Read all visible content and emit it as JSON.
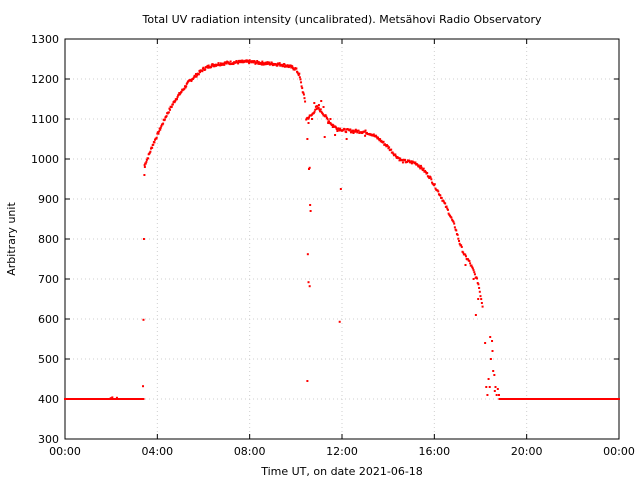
{
  "chart_data": {
    "type": "scatter",
    "title": "Total UV radiation intensity (uncalibrated). Metsähovi Radio Observatory",
    "xlabel": "Time UT, on date 2021-06-18",
    "ylabel": "Arbitrary unit",
    "x_unit": "hours UT",
    "xlim": [
      0,
      24
    ],
    "ylim": [
      300,
      1300
    ],
    "x_ticks": [
      0,
      4,
      8,
      12,
      16,
      20,
      24
    ],
    "x_tick_labels": [
      "00:00",
      "04:00",
      "08:00",
      "12:00",
      "16:00",
      "20:00",
      "00:00"
    ],
    "y_ticks": [
      300,
      400,
      500,
      600,
      700,
      800,
      900,
      1000,
      1100,
      1200,
      1300
    ],
    "y_tick_labels": [
      "300",
      "400",
      "500",
      "600",
      "700",
      "800",
      "900",
      "1000",
      "1100",
      "1200",
      "1300"
    ],
    "grid": true,
    "series": [
      {
        "color": "#ff0000",
        "segments": [
          {
            "x_start": 0.0,
            "x_end": 3.42,
            "step": 0.05,
            "profile": [
              [
                0.0,
                400
              ],
              [
                3.42,
                400
              ]
            ]
          },
          {
            "x_start": 3.45,
            "x_end": 10.42,
            "step": 0.025,
            "profile": [
              [
                3.45,
                985
              ],
              [
                3.6,
                1005
              ],
              [
                3.8,
                1035
              ],
              [
                4.0,
                1060
              ],
              [
                4.2,
                1085
              ],
              [
                4.4,
                1110
              ],
              [
                4.6,
                1130
              ],
              [
                4.8,
                1150
              ],
              [
                5.0,
                1165
              ],
              [
                5.2,
                1180
              ],
              [
                5.4,
                1195
              ],
              [
                5.6,
                1205
              ],
              [
                5.8,
                1215
              ],
              [
                6.0,
                1225
              ],
              [
                6.3,
                1233
              ],
              [
                6.6,
                1237
              ],
              [
                7.0,
                1240
              ],
              [
                7.5,
                1242
              ],
              [
                8.0,
                1243
              ],
              [
                8.5,
                1240
              ],
              [
                9.0,
                1238
              ],
              [
                9.4,
                1236
              ],
              [
                9.7,
                1232
              ],
              [
                10.0,
                1225
              ],
              [
                10.15,
                1210
              ],
              [
                10.3,
                1170
              ],
              [
                10.42,
                1140
              ]
            ]
          },
          {
            "x_start": 10.45,
            "x_end": 12.0,
            "step": 0.03,
            "profile": [
              [
                10.45,
                1100
              ],
              [
                10.7,
                1110
              ],
              [
                10.9,
                1130
              ],
              [
                11.1,
                1120
              ],
              [
                11.3,
                1105
              ],
              [
                11.5,
                1090
              ],
              [
                11.7,
                1080
              ],
              [
                11.9,
                1075
              ],
              [
                12.0,
                1075
              ]
            ]
          },
          {
            "x_start": 12.0,
            "x_end": 18.1,
            "step": 0.03,
            "profile": [
              [
                12.0,
                1072
              ],
              [
                12.5,
                1070
              ],
              [
                13.0,
                1068
              ],
              [
                13.3,
                1062
              ],
              [
                13.6,
                1050
              ],
              [
                14.0,
                1030
              ],
              [
                14.3,
                1010
              ],
              [
                14.6,
                995
              ],
              [
                14.9,
                993
              ],
              [
                15.2,
                990
              ],
              [
                15.5,
                975
              ],
              [
                15.8,
                955
              ],
              [
                16.0,
                935
              ],
              [
                16.3,
                905
              ],
              [
                16.6,
                870
              ],
              [
                16.9,
                830
              ],
              [
                17.1,
                790
              ],
              [
                17.3,
                760
              ],
              [
                17.5,
                745
              ],
              [
                17.7,
                720
              ],
              [
                17.9,
                690
              ],
              [
                18.0,
                660
              ],
              [
                18.1,
                630
              ]
            ]
          },
          {
            "x_start": 18.85,
            "x_end": 24.0,
            "step": 0.05,
            "profile": [
              [
                18.85,
                400
              ],
              [
                24.0,
                400
              ]
            ]
          }
        ],
        "points": [
          [
            3.38,
            432
          ],
          [
            3.4,
            598
          ],
          [
            3.42,
            800
          ],
          [
            3.44,
            960
          ],
          [
            3.46,
            980
          ],
          [
            1.98,
            402
          ],
          [
            2.05,
            404
          ],
          [
            2.25,
            403
          ],
          [
            10.5,
            445
          ],
          [
            10.52,
            762
          ],
          [
            10.55,
            692
          ],
          [
            10.6,
            682
          ],
          [
            10.62,
            885
          ],
          [
            10.64,
            870
          ],
          [
            10.57,
            975
          ],
          [
            10.6,
            978
          ],
          [
            10.5,
            1050
          ],
          [
            10.55,
            1090
          ],
          [
            10.7,
            1100
          ],
          [
            10.8,
            1140
          ],
          [
            10.9,
            1125
          ],
          [
            11.0,
            1135
          ],
          [
            11.1,
            1145
          ],
          [
            11.2,
            1130
          ],
          [
            11.25,
            1055
          ],
          [
            11.4,
            1090
          ],
          [
            11.5,
            1100
          ],
          [
            11.6,
            1080
          ],
          [
            11.7,
            1060
          ],
          [
            11.8,
            1070
          ],
          [
            11.95,
            925
          ],
          [
            11.9,
            593
          ],
          [
            12.2,
            1050
          ],
          [
            12.5,
            1065
          ],
          [
            13.0,
            1058
          ],
          [
            17.35,
            735
          ],
          [
            17.7,
            700
          ],
          [
            17.8,
            610
          ],
          [
            17.9,
            650
          ],
          [
            18.2,
            540
          ],
          [
            18.25,
            430
          ],
          [
            18.3,
            410
          ],
          [
            18.35,
            450
          ],
          [
            18.4,
            430
          ],
          [
            18.42,
            555
          ],
          [
            18.45,
            500
          ],
          [
            18.5,
            545
          ],
          [
            18.52,
            520
          ],
          [
            18.55,
            470
          ],
          [
            18.6,
            460
          ],
          [
            18.62,
            420
          ],
          [
            18.65,
            430
          ],
          [
            18.7,
            410
          ],
          [
            18.75,
            425
          ],
          [
            18.8,
            410
          ],
          [
            18.82,
            400
          ]
        ]
      }
    ]
  }
}
